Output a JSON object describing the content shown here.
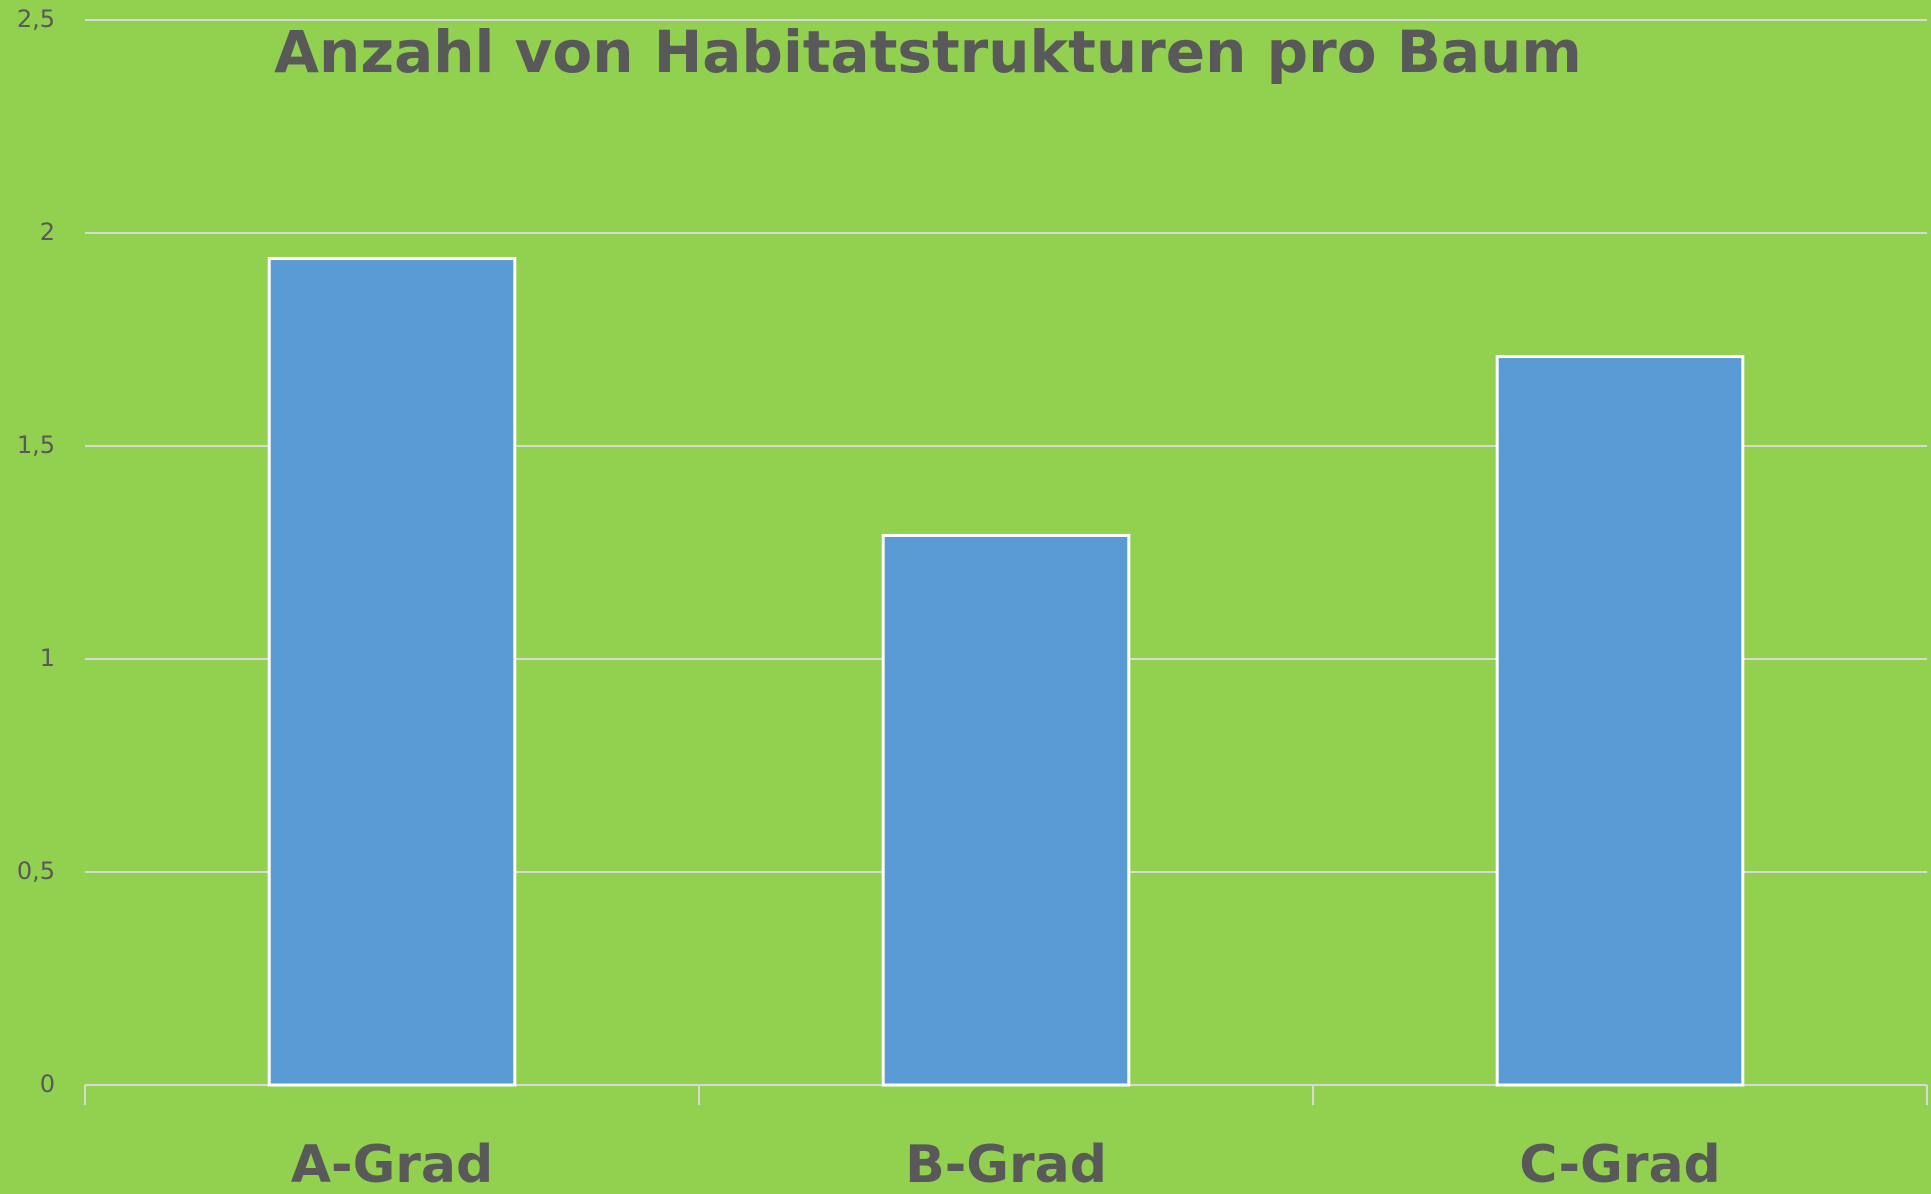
{
  "chart_data": {
    "type": "bar",
    "title": "Anzahl von Habitatstrukturen pro Baum",
    "categories": [
      "A-Grad",
      "B-Grad",
      "C-Grad"
    ],
    "values": [
      1.94,
      1.29,
      1.71
    ],
    "color": "#5b9bd5",
    "ylim": [
      0,
      2.5
    ],
    "yticks": [
      0,
      {
        "value": 0.5,
        "label": "0,5"
      },
      1,
      {
        "value": 1.5,
        "label": "1,5"
      },
      2,
      {
        "value": 2.5,
        "label": "2,5"
      }
    ],
    "grid": true
  }
}
